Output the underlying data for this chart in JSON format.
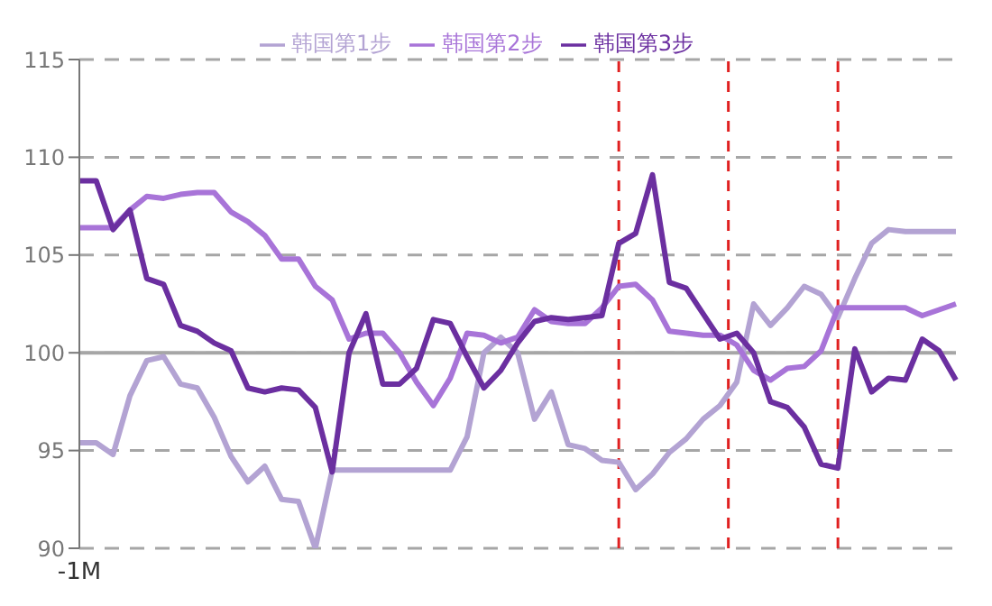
{
  "chart_data": {
    "type": "line",
    "categories": [
      "-1M",
      null,
      null,
      null,
      null,
      null,
      null,
      null,
      null,
      null,
      null,
      null,
      null,
      null,
      null,
      null,
      null,
      null,
      null,
      null,
      null,
      null,
      null,
      null,
      null,
      null,
      null,
      null,
      null,
      null,
      null,
      null,
      null,
      null,
      null,
      null,
      null,
      null,
      null,
      null,
      null,
      null,
      null,
      null,
      null,
      null,
      null,
      null,
      null,
      null,
      null,
      null,
      null
    ],
    "ylim": [
      90,
      115
    ],
    "yticks": [
      90,
      95,
      100,
      105,
      110,
      115
    ],
    "grid": "y",
    "legend": "top",
    "marker": "none",
    "line_style": "solid",
    "ref_lines": [
      {
        "axis": "y",
        "value": 100,
        "color": "#a6a6a6",
        "line_style": "solid"
      }
    ],
    "series": [
      {
        "name": "韩国第1步",
        "color": "#b3a3d3",
        "values": [
          95.4,
          95.4,
          94.8,
          97.8,
          99.6,
          99.8,
          98.4,
          98.2,
          96.7,
          94.7,
          93.4,
          94.2,
          92.5,
          92.4,
          90,
          94,
          94,
          94,
          94,
          94,
          94,
          94,
          94,
          95.7,
          100,
          100.8,
          100,
          96.6,
          98,
          95.3,
          95.1,
          94.5,
          94.4,
          93,
          93.8,
          94.9,
          95.6,
          96.6,
          97.3,
          98.5,
          102.5,
          101.4,
          102.3,
          103.4,
          103,
          101.8,
          103.8,
          105.6,
          106.3,
          106.2,
          106.2,
          106.2,
          106.2
        ]
      },
      {
        "name": "韩国第2步",
        "color": "#a874d8",
        "values": [
          106.4,
          106.4,
          106.4,
          107.3,
          108,
          107.9,
          108.1,
          108.2,
          108.2,
          107.2,
          106.7,
          106,
          104.8,
          104.8,
          103.4,
          102.7,
          100.7,
          101,
          101,
          100,
          98.5,
          97.3,
          98.7,
          101,
          100.9,
          100.5,
          100.8,
          102.2,
          101.6,
          101.5,
          101.5,
          102.3,
          103.4,
          103.5,
          102.7,
          101.1,
          101,
          100.9,
          100.9,
          100.4,
          99.1,
          98.6,
          99.2,
          99.3,
          100.1,
          102.3,
          102.3,
          102.3,
          102.3,
          102.3,
          101.9,
          102.2,
          102.5
        ]
      },
      {
        "name": "韩国第3步",
        "color": "#6b2fa0",
        "values": [
          108.8,
          108.8,
          106.3,
          107.3,
          103.8,
          103.5,
          101.4,
          101.1,
          100.5,
          100.1,
          98.2,
          98,
          98.2,
          98.1,
          97.2,
          93.9,
          100,
          102,
          98.4,
          98.4,
          99.2,
          101.7,
          101.5,
          99.8,
          98.2,
          99.1,
          100.5,
          101.6,
          101.8,
          101.7,
          101.8,
          101.9,
          105.6,
          106.1,
          109.1,
          103.6,
          103.3,
          102,
          100.7,
          101,
          100,
          97.5,
          97.2,
          96.2,
          94.3,
          94.1,
          100.2,
          98,
          98.7,
          98.6,
          100.7,
          100.1,
          98.6
        ]
      }
    ]
  }
}
